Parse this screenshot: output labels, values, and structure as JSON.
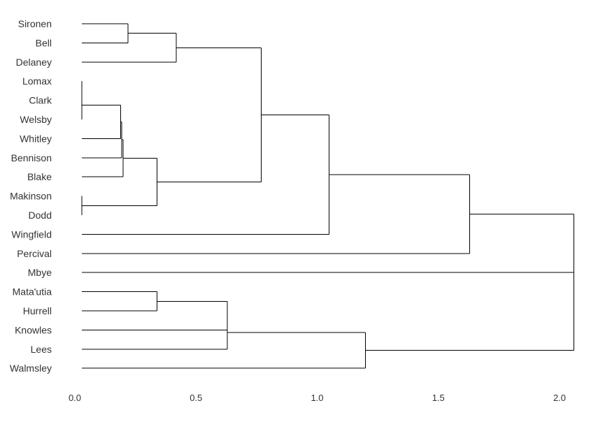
{
  "chart_data": {
    "type": "dendrogram",
    "orientation": "horizontal",
    "leaves": [
      "Sironen",
      "Bell",
      "Delaney",
      "Lomax",
      "Clark",
      "Welsby",
      "Whitley",
      "Bennison",
      "Blake",
      "Makinson",
      "Dodd",
      "Wingfield",
      "Percival",
      "Mbye",
      "Mata'utia",
      "Hurrell",
      "Knowles",
      "Lees",
      "Walmsley"
    ],
    "merges": [
      {
        "a": "Sironen",
        "b": "Bell",
        "height": 0.19
      },
      {
        "a": "m0",
        "b": "Delaney",
        "height": 0.39
      },
      {
        "a": "Lomax",
        "b": "Clark",
        "height": 0.0
      },
      {
        "a": "m2",
        "b": "Welsby",
        "height": 0.0
      },
      {
        "a": "Makinson",
        "b": "Dodd",
        "height": 0.0
      },
      {
        "a": "m3",
        "b": "Whitley",
        "height": 0.16
      },
      {
        "a": "m5",
        "b": "Bennison",
        "height": 0.165
      },
      {
        "a": "m6",
        "b": "Blake",
        "height": 0.17
      },
      {
        "a": "m7",
        "b": "m4",
        "height": 0.31
      },
      {
        "a": "m1",
        "b": "m8",
        "height": 0.74
      },
      {
        "a": "m9",
        "b": "Wingfield",
        "height": 1.02
      },
      {
        "a": "m10",
        "b": "Percival",
        "height": 1.6
      },
      {
        "a": "Mata'utia",
        "b": "Hurrell",
        "height": 0.31
      },
      {
        "a": "m12",
        "b": "Knowles",
        "height": 0.6
      },
      {
        "a": "m13",
        "b": "Lees",
        "height": 0.6
      },
      {
        "a": "m14",
        "b": "Walmsley",
        "height": 1.17
      },
      {
        "a": "m11",
        "b": "Mbye",
        "height": 2.03
      },
      {
        "a": "m16",
        "b": "m15",
        "height": 2.03
      }
    ],
    "xticks": [
      0.0,
      0.5,
      1.0,
      1.5,
      2.0
    ],
    "xtick_labels": [
      "0.0",
      "0.5",
      "1.0",
      "1.5",
      "2.0"
    ],
    "xlim": [
      0.0,
      2.05
    ],
    "grid": false
  }
}
